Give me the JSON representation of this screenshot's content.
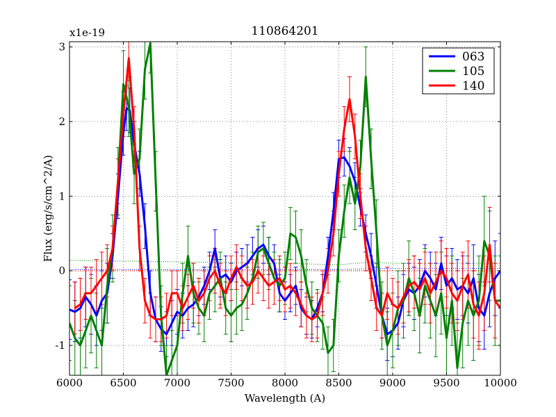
{
  "chart_data": {
    "type": "line",
    "title": "110864201",
    "xlabel": "Wavelength (A)",
    "ylabel": "Flux (erg/s/cm^2/A)",
    "y_offset_label": "x1e-19",
    "xlim": [
      6000,
      10000
    ],
    "ylim": [
      -1.4,
      3.07
    ],
    "xticks": [
      6000,
      6500,
      7000,
      7500,
      8000,
      8500,
      9000,
      9500,
      10000
    ],
    "xtick_labels": [
      "6000",
      "6500",
      "7000",
      "7500",
      "8000",
      "8500",
      "9000",
      "9500",
      "10000"
    ],
    "yticks": [
      -1,
      0,
      1,
      2,
      3
    ],
    "ytick_labels": [
      "-1",
      "0",
      "1",
      "2",
      "3"
    ],
    "grid": true,
    "legend_position": "top-right",
    "series": [
      {
        "name": "063",
        "color": "#0000ff",
        "x": [
          6000,
          6050,
          6100,
          6150,
          6200,
          6250,
          6300,
          6350,
          6400,
          6450,
          6500,
          6530,
          6560,
          6600,
          6650,
          6700,
          6750,
          6800,
          6850,
          6900,
          6950,
          7000,
          7050,
          7100,
          7150,
          7200,
          7250,
          7300,
          7350,
          7400,
          7450,
          7500,
          7550,
          7600,
          7650,
          7700,
          7750,
          7800,
          7850,
          7900,
          7950,
          8000,
          8050,
          8100,
          8150,
          8200,
          8250,
          8300,
          8350,
          8400,
          8450,
          8500,
          8550,
          8600,
          8650,
          8700,
          8750,
          8800,
          8850,
          8900,
          8950,
          9000,
          9050,
          9100,
          9150,
          9200,
          9250,
          9300,
          9350,
          9400,
          9450,
          9500,
          9550,
          9600,
          9650,
          9700,
          9750,
          9800,
          9850,
          9900,
          9950,
          10000
        ],
        "values": [
          -0.52,
          -0.55,
          -0.5,
          -0.35,
          -0.45,
          -0.6,
          -0.4,
          -0.3,
          0.2,
          1.0,
          1.85,
          2.18,
          2.15,
          1.7,
          1.3,
          0.6,
          -0.3,
          -0.65,
          -0.78,
          -0.85,
          -0.7,
          -0.55,
          -0.6,
          -0.5,
          -0.45,
          -0.35,
          -0.2,
          0.0,
          0.3,
          -0.1,
          -0.05,
          -0.15,
          0.0,
          0.05,
          0.1,
          0.2,
          0.3,
          0.35,
          0.2,
          0.1,
          -0.3,
          -0.4,
          -0.3,
          -0.2,
          -0.5,
          -0.6,
          -0.65,
          -0.5,
          -0.3,
          0.2,
          0.8,
          1.5,
          1.52,
          1.4,
          1.2,
          0.85,
          0.5,
          0.2,
          -0.2,
          -0.6,
          -0.85,
          -0.8,
          -0.7,
          -0.4,
          -0.25,
          -0.3,
          -0.2,
          0.0,
          -0.1,
          -0.25,
          0.1,
          -0.2,
          -0.1,
          -0.25,
          -0.2,
          -0.3,
          -0.1,
          -0.5,
          -0.6,
          -0.3,
          -0.1,
          0.0
        ],
        "errors": [
          0.4,
          0.4,
          0.4,
          0.4,
          0.4,
          0.4,
          0.4,
          0.4,
          0.3,
          0.3,
          0.3,
          0.3,
          0.3,
          0.3,
          0.3,
          0.3,
          0.3,
          0.3,
          0.3,
          0.3,
          0.3,
          0.3,
          0.3,
          0.3,
          0.3,
          0.25,
          0.25,
          0.25,
          0.25,
          0.25,
          0.25,
          0.25,
          0.25,
          0.25,
          0.25,
          0.25,
          0.25,
          0.25,
          0.25,
          0.25,
          0.25,
          0.25,
          0.25,
          0.25,
          0.25,
          0.25,
          0.25,
          0.25,
          0.25,
          0.25,
          0.25,
          0.25,
          0.25,
          0.25,
          0.25,
          0.25,
          0.25,
          0.3,
          0.3,
          0.3,
          0.35,
          0.35,
          0.35,
          0.35,
          0.35,
          0.35,
          0.35,
          0.35,
          0.35,
          0.35,
          0.35,
          0.4,
          0.4,
          0.4,
          0.4,
          0.4,
          0.45,
          0.45,
          0.45,
          0.45,
          0.5,
          0.5
        ]
      },
      {
        "name": "105",
        "color": "#008000",
        "x": [
          6000,
          6050,
          6100,
          6150,
          6200,
          6250,
          6300,
          6350,
          6400,
          6450,
          6500,
          6550,
          6600,
          6650,
          6700,
          6750,
          6800,
          6850,
          6900,
          6950,
          7000,
          7050,
          7100,
          7150,
          7200,
          7250,
          7300,
          7350,
          7400,
          7450,
          7500,
          7550,
          7600,
          7650,
          7700,
          7750,
          7800,
          7850,
          7900,
          7950,
          8000,
          8050,
          8100,
          8150,
          8200,
          8250,
          8300,
          8350,
          8400,
          8450,
          8500,
          8550,
          8600,
          8650,
          8700,
          8750,
          8800,
          8850,
          8900,
          8950,
          9000,
          9050,
          9100,
          9150,
          9200,
          9250,
          9300,
          9350,
          9400,
          9450,
          9500,
          9550,
          9600,
          9650,
          9700,
          9750,
          9800,
          9850,
          9900,
          9950,
          10000
        ],
        "values": [
          -0.7,
          -0.9,
          -1.0,
          -0.8,
          -0.6,
          -0.8,
          -1.0,
          -0.2,
          0.3,
          1.2,
          2.5,
          2.2,
          1.3,
          1.5,
          2.7,
          3.05,
          1.2,
          -0.6,
          -1.4,
          -1.2,
          -1.0,
          -0.3,
          0.2,
          -0.3,
          -0.5,
          -0.6,
          -0.3,
          -0.2,
          -0.1,
          -0.5,
          -0.6,
          -0.5,
          -0.45,
          -0.3,
          -0.1,
          0.25,
          0.3,
          0.1,
          -0.1,
          -0.2,
          -0.1,
          0.5,
          0.45,
          0.2,
          -0.2,
          -0.5,
          -0.6,
          -0.7,
          -1.1,
          -1.0,
          0.2,
          0.8,
          1.25,
          0.9,
          1.4,
          2.6,
          1.5,
          0.5,
          -0.6,
          -1.0,
          -0.8,
          -0.5,
          -0.4,
          -0.1,
          -0.3,
          -0.6,
          -0.2,
          -0.4,
          -0.6,
          -0.3,
          -0.9,
          -0.4,
          -1.3,
          -0.7,
          -0.4,
          -0.6,
          -0.4,
          0.4,
          0.2,
          -0.4,
          -0.4
        ],
        "errors": [
          0.5,
          0.5,
          0.5,
          0.5,
          0.5,
          0.5,
          0.5,
          0.5,
          0.45,
          0.45,
          0.45,
          0.4,
          0.4,
          0.4,
          0.4,
          0.4,
          0.4,
          0.4,
          0.4,
          0.4,
          0.4,
          0.4,
          0.4,
          0.4,
          0.35,
          0.35,
          0.35,
          0.35,
          0.35,
          0.35,
          0.35,
          0.35,
          0.35,
          0.35,
          0.35,
          0.35,
          0.35,
          0.35,
          0.35,
          0.35,
          0.35,
          0.35,
          0.35,
          0.35,
          0.35,
          0.35,
          0.35,
          0.35,
          0.35,
          0.35,
          0.35,
          0.35,
          0.35,
          0.35,
          0.35,
          0.4,
          0.4,
          0.45,
          0.45,
          0.45,
          0.5,
          0.5,
          0.5,
          0.5,
          0.5,
          0.5,
          0.5,
          0.5,
          0.55,
          0.55,
          0.55,
          0.6,
          0.6,
          0.6,
          0.6,
          0.6,
          0.6,
          0.6,
          0.6,
          0.6,
          0.6
        ]
      },
      {
        "name": "140",
        "color": "#ff0000",
        "x": [
          6050,
          6100,
          6150,
          6200,
          6250,
          6300,
          6350,
          6400,
          6450,
          6500,
          6550,
          6600,
          6650,
          6700,
          6750,
          6800,
          6850,
          6900,
          6950,
          7000,
          7050,
          7100,
          7150,
          7200,
          7250,
          7300,
          7350,
          7400,
          7450,
          7500,
          7550,
          7600,
          7650,
          7700,
          7750,
          7800,
          7850,
          7900,
          7950,
          8000,
          8050,
          8100,
          8150,
          8200,
          8250,
          8300,
          8350,
          8400,
          8450,
          8500,
          8550,
          8600,
          8650,
          8700,
          8750,
          8800,
          8850,
          8900,
          8950,
          9000,
          9050,
          9100,
          9150,
          9200,
          9250,
          9300,
          9350,
          9400,
          9450,
          9500,
          9550,
          9600,
          9650,
          9700,
          9750,
          9800,
          9850,
          9900,
          9950,
          10000
        ],
        "values": [
          -0.5,
          -0.45,
          -0.3,
          -0.3,
          -0.2,
          -0.1,
          0.0,
          0.3,
          1.2,
          2.1,
          2.85,
          1.9,
          0.3,
          -0.4,
          -0.6,
          -0.65,
          -0.65,
          -0.6,
          -0.3,
          -0.3,
          -0.5,
          -0.35,
          -0.2,
          -0.4,
          -0.3,
          -0.1,
          0.0,
          -0.2,
          -0.3,
          -0.1,
          0.05,
          -0.1,
          -0.2,
          -0.15,
          0.0,
          -0.1,
          -0.2,
          -0.15,
          -0.1,
          -0.25,
          -0.2,
          -0.3,
          -0.45,
          -0.6,
          -0.65,
          -0.6,
          -0.3,
          0.0,
          0.5,
          1.3,
          1.9,
          2.3,
          1.8,
          1.0,
          0.3,
          -0.1,
          -0.5,
          -0.6,
          -0.3,
          -0.45,
          -0.5,
          -0.35,
          -0.2,
          -0.15,
          -0.25,
          -0.1,
          -0.3,
          -0.15,
          0.0,
          -0.1,
          -0.3,
          -0.4,
          -0.2,
          -0.05,
          -0.45,
          -0.6,
          -0.3,
          0.35,
          -0.4,
          -0.5
        ],
        "errors": [
          0.35,
          0.35,
          0.35,
          0.35,
          0.35,
          0.35,
          0.35,
          0.3,
          0.3,
          0.3,
          0.3,
          0.3,
          0.3,
          0.3,
          0.3,
          0.3,
          0.3,
          0.3,
          0.3,
          0.3,
          0.3,
          0.3,
          0.3,
          0.3,
          0.3,
          0.3,
          0.3,
          0.3,
          0.3,
          0.3,
          0.3,
          0.3,
          0.3,
          0.3,
          0.3,
          0.3,
          0.3,
          0.3,
          0.3,
          0.3,
          0.3,
          0.3,
          0.3,
          0.3,
          0.3,
          0.3,
          0.3,
          0.3,
          0.3,
          0.3,
          0.3,
          0.3,
          0.3,
          0.3,
          0.3,
          0.3,
          0.3,
          0.3,
          0.35,
          0.35,
          0.35,
          0.35,
          0.35,
          0.35,
          0.35,
          0.35,
          0.4,
          0.4,
          0.4,
          0.4,
          0.4,
          0.4,
          0.45,
          0.45,
          0.45,
          0.45,
          0.5,
          0.5,
          0.5,
          0.5
        ]
      }
    ],
    "sky_lines": [
      {
        "color": "#008000",
        "x": [
          6000,
          6500,
          7000,
          7500,
          8000,
          8500,
          8800,
          9000,
          9500,
          10000
        ],
        "values": [
          0.14,
          0.13,
          0.12,
          0.11,
          0.1,
          0.08,
          0.12,
          0.1,
          0.1,
          0.1
        ]
      },
      {
        "color": "#0000ff",
        "x": [
          6000,
          6500,
          7000,
          7500,
          8000,
          8500,
          9000,
          9500,
          10000
        ],
        "values": [
          0.02,
          0.02,
          0.02,
          0.02,
          0.02,
          0.02,
          0.03,
          0.03,
          0.03
        ]
      },
      {
        "color": "#ff0000",
        "x": [
          6000,
          6500,
          7000,
          7500,
          8000,
          8500,
          9000,
          9500,
          10000
        ],
        "values": [
          0.0,
          0.0,
          0.0,
          0.0,
          0.0,
          0.0,
          0.0,
          0.0,
          0.0
        ]
      }
    ]
  }
}
